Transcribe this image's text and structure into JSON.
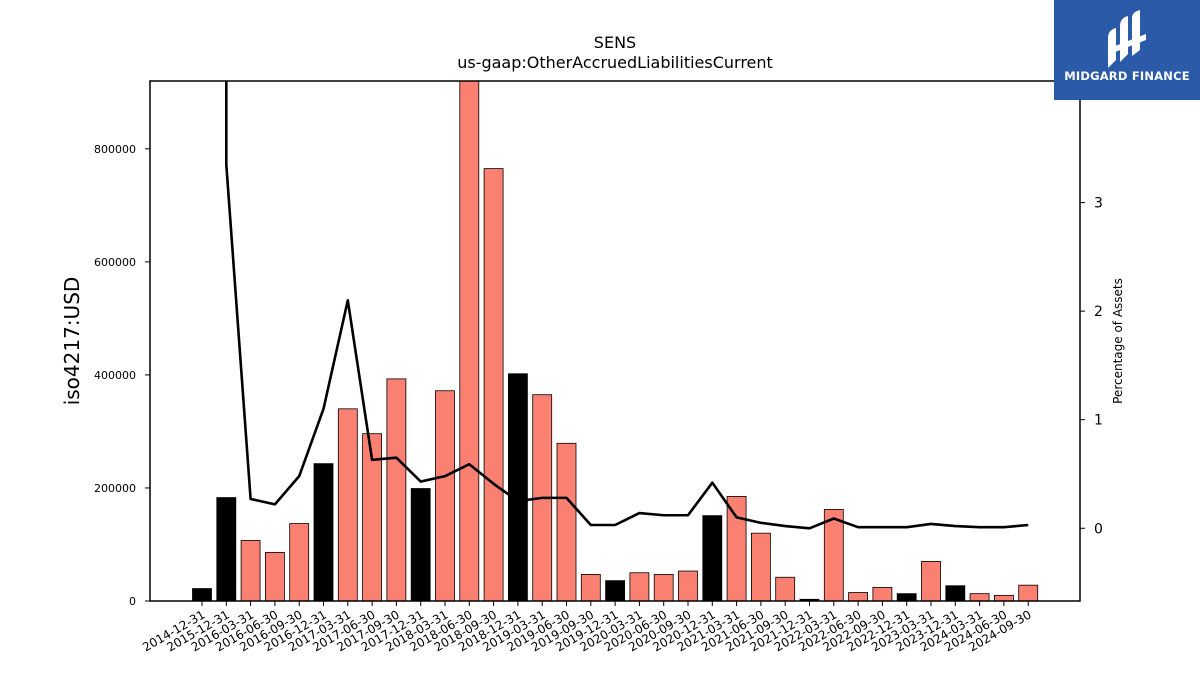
{
  "chart_data": {
    "type": "bar",
    "title": "SENS",
    "subtitle": "us-gaap:OtherAccruedLiabilitiesCurrent",
    "ylabel": "iso4217:USD",
    "y2label": "Percentage of Assets",
    "ylim": [
      0,
      920000
    ],
    "y2lim": [
      -0.67,
      4.12
    ],
    "yticks": [
      0,
      200000,
      400000,
      600000,
      800000
    ],
    "yticklabels": [
      "0",
      "200000",
      "400000",
      "600000",
      "800000"
    ],
    "y2ticks": [
      0,
      1,
      2,
      3
    ],
    "y2ticklabels": [
      "0",
      "1",
      "2",
      "3"
    ],
    "categories": [
      "2014-12-31",
      "2015-12-31",
      "2016-03-31",
      "2016-06-30",
      "2016-09-30",
      "2016-12-31",
      "2017-03-31",
      "2017-06-30",
      "2017-09-30",
      "2017-12-31",
      "2018-03-31",
      "2018-06-30",
      "2018-09-30",
      "2018-12-31",
      "2019-03-31",
      "2019-06-30",
      "2019-09-30",
      "2019-12-31",
      "2020-03-31",
      "2020-06-30",
      "2020-09-30",
      "2020-12-31",
      "2021-03-31",
      "2021-06-30",
      "2021-09-30",
      "2021-12-31",
      "2022-03-31",
      "2022-06-30",
      "2022-09-30",
      "2022-12-31",
      "2023-03-31",
      "2023-12-31",
      "2024-03-31",
      "2024-06-30",
      "2024-09-30"
    ],
    "values": [
      22000,
      183000,
      107000,
      86000,
      137000,
      243000,
      340000,
      296000,
      393000,
      199000,
      372000,
      920000,
      765000,
      402000,
      365000,
      279000,
      47000,
      36000,
      50000,
      47000,
      53000,
      151000,
      185000,
      120000,
      42000,
      3000,
      162000,
      15000,
      24000,
      13000,
      70000,
      27000,
      13000,
      10000,
      28000
    ],
    "bar_colors": [
      "#000000",
      "#000000",
      "#fa8072",
      "#fa8072",
      "#fa8072",
      "#000000",
      "#fa8072",
      "#fa8072",
      "#fa8072",
      "#000000",
      "#fa8072",
      "#fa8072",
      "#fa8072",
      "#000000",
      "#fa8072",
      "#fa8072",
      "#fa8072",
      "#000000",
      "#fa8072",
      "#fa8072",
      "#fa8072",
      "#000000",
      "#fa8072",
      "#fa8072",
      "#fa8072",
      "#000000",
      "#fa8072",
      "#fa8072",
      "#fa8072",
      "#000000",
      "#fa8072",
      "#000000",
      "#fa8072",
      "#fa8072",
      "#fa8072"
    ],
    "line_series": {
      "axis": "right",
      "color": "#000000",
      "values": [
        null,
        3.35,
        0.27,
        0.22,
        0.48,
        1.1,
        2.1,
        0.63,
        0.65,
        0.43,
        0.48,
        0.59,
        0.41,
        0.25,
        0.28,
        0.28,
        0.03,
        0.03,
        0.14,
        0.12,
        0.12,
        0.42,
        0.1,
        0.05,
        0.02,
        0.0,
        0.09,
        0.01,
        0.01,
        0.01,
        0.04,
        0.02,
        0.01,
        0.01,
        0.03
      ],
      "note_leading": "line enters from top of plot at first category"
    },
    "grid": false,
    "legend": "none"
  },
  "logo": {
    "brand": "MIDGARD FINANCE",
    "icon": "midgard-logo-icon"
  }
}
